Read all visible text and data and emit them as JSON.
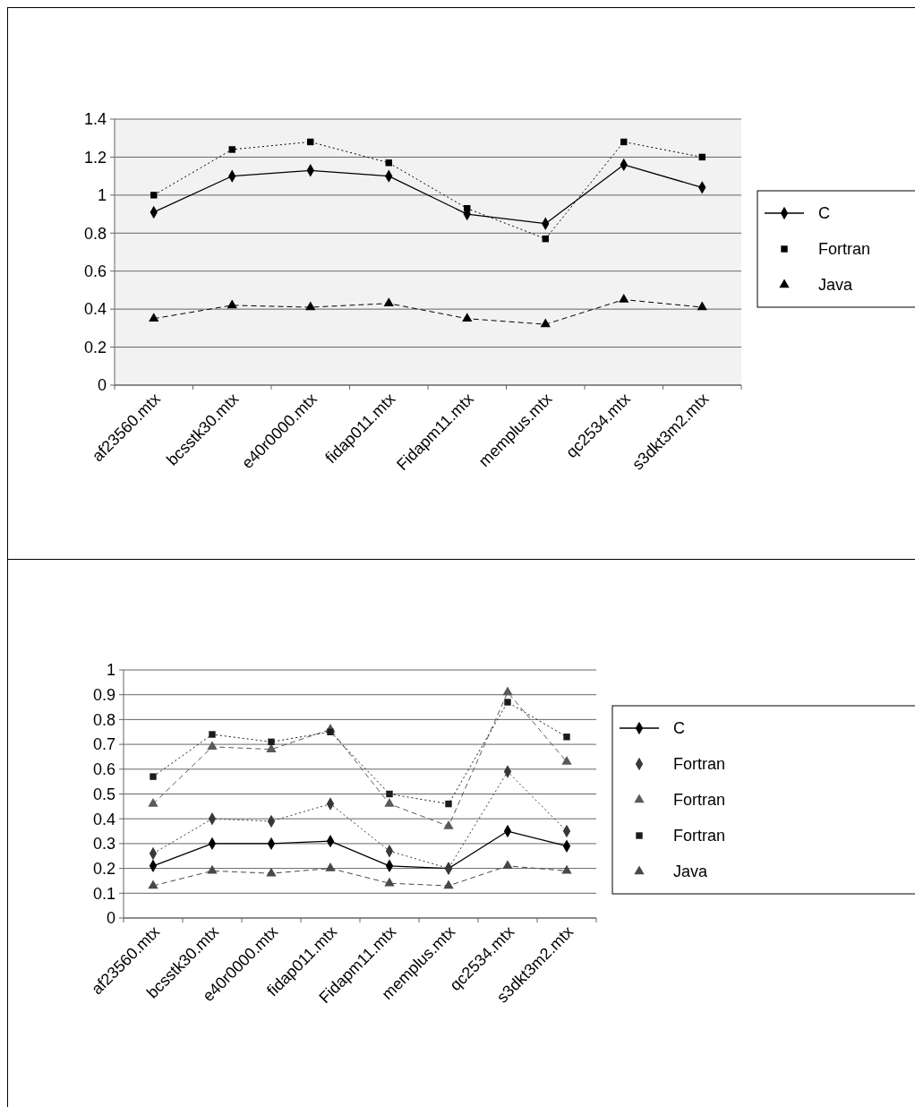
{
  "chart_data": [
    {
      "type": "line",
      "categories": [
        "af23560.mtx",
        "bcsstk30.mtx",
        "e40r0000.mtx",
        "fidap011.mtx",
        "Fidapm11.mtx",
        "memplus.mtx",
        "qc2534.mtx",
        "s3dkt3m2.mtx"
      ],
      "ylim": [
        0,
        1.4
      ],
      "yticks": [
        0,
        0.2,
        0.4,
        0.6,
        0.8,
        1,
        1.2,
        1.4
      ],
      "grid": "y",
      "legend": "right",
      "series": [
        {
          "name": "C",
          "color": "#000000",
          "marker": "diamond",
          "line_style": "solid",
          "values": [
            0.91,
            1.1,
            1.13,
            1.1,
            0.9,
            0.85,
            1.16,
            1.04
          ]
        },
        {
          "name": "Fortran",
          "color": "#000000",
          "marker": "square",
          "line_style": "dotted",
          "values": [
            1.0,
            1.24,
            1.28,
            1.17,
            0.93,
            0.77,
            1.28,
            1.2
          ]
        },
        {
          "name": "Java",
          "color": "#000000",
          "marker": "triangle",
          "line_style": "dashed",
          "values": [
            0.35,
            0.42,
            0.41,
            0.43,
            0.35,
            0.32,
            0.45,
            0.41
          ]
        }
      ]
    },
    {
      "type": "line",
      "categories": [
        "af23560.mtx",
        "bcsstk30.mtx",
        "e40r0000.mtx",
        "fidap011.mtx",
        "Fidapm11.mtx",
        "memplus.mtx",
        "qc2534.mtx",
        "s3dkt3m2.mtx"
      ],
      "ylim": [
        0,
        1
      ],
      "yticks": [
        0,
        0.1,
        0.2,
        0.3,
        0.4,
        0.5,
        0.6,
        0.7,
        0.8,
        0.9,
        1
      ],
      "grid": "y",
      "legend": "right",
      "series": [
        {
          "name": "C",
          "color": "#000000",
          "marker": "diamond",
          "line_style": "solid",
          "values": [
            0.21,
            0.3,
            0.3,
            0.31,
            0.21,
            0.2,
            0.35,
            0.29
          ]
        },
        {
          "name": "Fortran",
          "color": "#383838",
          "marker": "diamond",
          "line_style": "dotted",
          "values": [
            0.26,
            0.4,
            0.39,
            0.46,
            0.27,
            0.2,
            0.59,
            0.35
          ]
        },
        {
          "name": "Fortran",
          "color": "#5a5a5a",
          "marker": "triangle",
          "line_style": "dashed",
          "values": [
            0.46,
            0.69,
            0.68,
            0.76,
            0.46,
            0.37,
            0.91,
            0.63
          ]
        },
        {
          "name": "Fortran",
          "color": "#1c1c1c",
          "marker": "square",
          "line_style": "dotted",
          "values": [
            0.57,
            0.74,
            0.71,
            0.75,
            0.5,
            0.46,
            0.87,
            0.73
          ]
        },
        {
          "name": "Java",
          "color": "#484848",
          "marker": "triangle",
          "line_style": "dashed",
          "values": [
            0.13,
            0.19,
            0.18,
            0.2,
            0.14,
            0.13,
            0.21,
            0.19
          ]
        }
      ]
    }
  ]
}
